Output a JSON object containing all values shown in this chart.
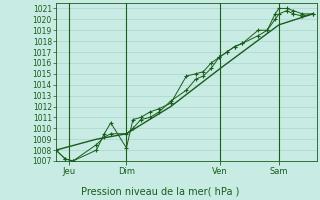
{
  "title": "",
  "xlabel": "Pression niveau de la mer( hPa )",
  "bg_color": "#c8ece4",
  "grid_color": "#a8d4cc",
  "line_color": "#1a5c1a",
  "tick_label_color": "#1a5c1a",
  "ylim": [
    1007,
    1021.5
  ],
  "yticks": [
    1007,
    1008,
    1009,
    1010,
    1011,
    1012,
    1013,
    1014,
    1015,
    1016,
    1017,
    1018,
    1019,
    1020,
    1021
  ],
  "day_labels": [
    "Jeu",
    "Dim",
    "Ven",
    "Sam"
  ],
  "day_positions": [
    0.05,
    0.27,
    0.63,
    0.855
  ],
  "xlim": [
    0.0,
    1.0
  ],
  "series1_x": [
    0.0,
    0.035,
    0.065,
    0.155,
    0.185,
    0.21,
    0.27,
    0.295,
    0.325,
    0.36,
    0.395,
    0.44,
    0.5,
    0.535,
    0.565,
    0.595,
    0.625,
    0.655,
    0.685,
    0.715,
    0.775,
    0.81,
    0.84,
    0.855,
    0.885,
    0.91,
    0.945,
    0.985
  ],
  "series1_y": [
    1008.0,
    1007.2,
    1007.0,
    1008.0,
    1009.5,
    1010.5,
    1008.2,
    1010.8,
    1011.0,
    1011.5,
    1011.8,
    1012.3,
    1014.8,
    1015.0,
    1015.2,
    1016.0,
    1016.5,
    1017.0,
    1017.5,
    1017.8,
    1019.0,
    1019.0,
    1020.5,
    1021.0,
    1021.0,
    1020.8,
    1020.5,
    1020.5
  ],
  "series2_x": [
    0.0,
    0.035,
    0.065,
    0.155,
    0.185,
    0.21,
    0.27,
    0.295,
    0.325,
    0.36,
    0.395,
    0.44,
    0.5,
    0.535,
    0.565,
    0.595,
    0.625,
    0.655,
    0.685,
    0.715,
    0.775,
    0.81,
    0.84,
    0.855,
    0.885,
    0.91,
    0.945,
    0.985
  ],
  "series2_y": [
    1008.0,
    1007.2,
    1007.0,
    1008.5,
    1009.2,
    1009.5,
    1009.5,
    1010.0,
    1010.8,
    1011.0,
    1011.5,
    1012.5,
    1013.5,
    1014.5,
    1014.8,
    1015.5,
    1016.5,
    1017.0,
    1017.5,
    1017.8,
    1018.5,
    1019.0,
    1020.0,
    1020.5,
    1020.8,
    1020.5,
    1020.3,
    1020.5
  ],
  "series3_x": [
    0.0,
    0.155,
    0.27,
    0.44,
    0.63,
    0.855,
    0.985
  ],
  "series3_y": [
    1008.0,
    1009.0,
    1009.5,
    1012.0,
    1015.5,
    1019.5,
    1020.5
  ]
}
